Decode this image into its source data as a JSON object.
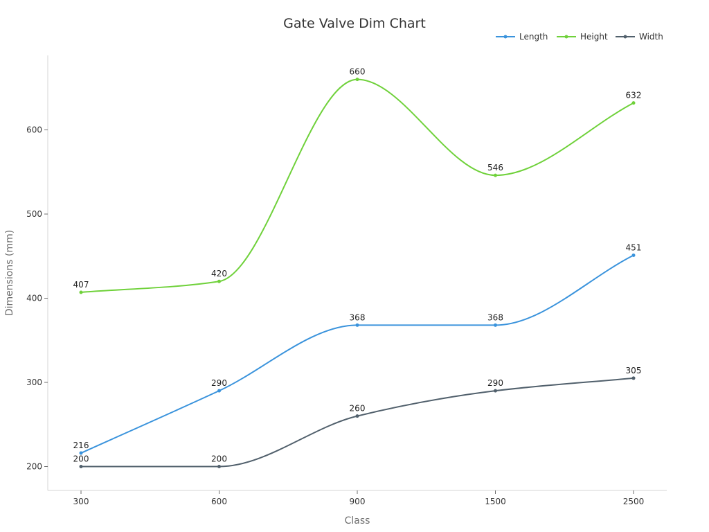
{
  "chart_data": {
    "type": "line",
    "title": "Gate Valve Dim Chart",
    "xlabel": "Class",
    "ylabel": "Dimensions (mm)",
    "categories": [
      "300",
      "600",
      "900",
      "1500",
      "2500"
    ],
    "ylim": [
      170,
      690
    ],
    "yticks": [
      200,
      300,
      400,
      500,
      600
    ],
    "legend_position": "top-right",
    "smooth": true,
    "series": [
      {
        "name": "Length",
        "color": "#3a93dc",
        "values": [
          216,
          290,
          368,
          368,
          451
        ]
      },
      {
        "name": "Height",
        "color": "#6fd13a",
        "values": [
          407,
          420,
          660,
          546,
          632
        ]
      },
      {
        "name": "Width",
        "color": "#51606c",
        "values": [
          200,
          200,
          260,
          290,
          305
        ]
      }
    ]
  }
}
